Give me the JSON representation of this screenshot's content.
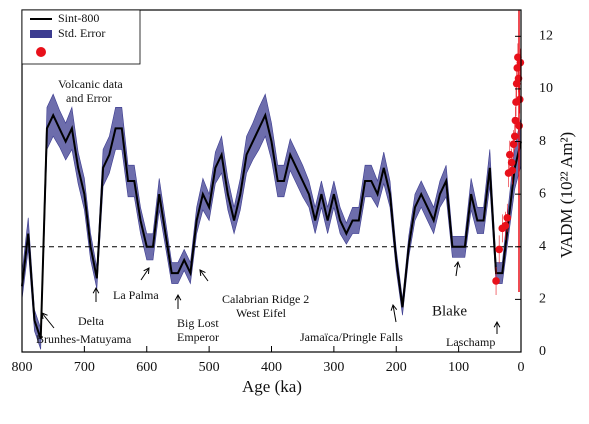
{
  "chart_data": {
    "type": "line",
    "x_label": "Age (ka)",
    "y_label": "VADM (10²² Am²)",
    "xlim": [
      800,
      0
    ],
    "xticks": [
      800,
      700,
      600,
      500,
      400,
      300,
      200,
      100,
      0
    ],
    "ylim": [
      0,
      13
    ],
    "yticks": [
      0,
      2,
      4,
      6,
      8,
      10,
      12
    ],
    "reference_line": 4,
    "x": [
      800,
      790,
      780,
      770,
      760,
      750,
      740,
      730,
      720,
      710,
      700,
      690,
      680,
      670,
      660,
      650,
      640,
      630,
      620,
      610,
      600,
      590,
      580,
      570,
      560,
      550,
      540,
      530,
      520,
      510,
      500,
      490,
      480,
      470,
      460,
      450,
      440,
      430,
      420,
      410,
      400,
      390,
      380,
      370,
      360,
      350,
      340,
      330,
      320,
      310,
      300,
      290,
      280,
      270,
      260,
      250,
      240,
      230,
      220,
      210,
      200,
      190,
      180,
      170,
      160,
      150,
      140,
      130,
      120,
      110,
      100,
      90,
      80,
      70,
      60,
      50,
      40,
      30,
      20,
      10,
      0
    ],
    "series": [
      {
        "name": "Sint-800",
        "color": "#000000",
        "values": [
          2.5,
          4.5,
          1.2,
          0.5,
          8.5,
          9,
          8.5,
          8,
          8.5,
          7,
          6,
          4,
          2.8,
          7,
          7.5,
          8.5,
          8.5,
          6.5,
          6.5,
          5,
          4,
          4,
          6,
          4.5,
          3,
          3,
          3.5,
          3,
          5,
          6,
          5.5,
          7,
          7.5,
          6,
          5,
          6,
          7.5,
          8,
          8.5,
          9,
          8,
          6.5,
          6.5,
          7.5,
          7,
          6.5,
          6,
          5,
          6,
          5,
          6,
          5,
          4.5,
          5,
          5,
          6.5,
          6.5,
          6,
          7,
          6,
          3.5,
          1.7,
          4,
          5.5,
          6,
          5.5,
          5,
          6,
          6.5,
          4,
          4,
          4,
          6,
          5,
          5,
          7,
          3,
          3,
          5,
          7,
          8
        ]
      },
      {
        "name": "Std. Error",
        "color": "#3c3c90",
        "values": [
          0.5,
          0.6,
          0.4,
          0.4,
          0.8,
          0.8,
          0.7,
          0.7,
          0.8,
          0.6,
          0.6,
          0.5,
          0.4,
          0.7,
          0.7,
          0.8,
          0.8,
          0.6,
          0.6,
          0.5,
          0.5,
          0.5,
          0.6,
          0.5,
          0.4,
          0.4,
          0.4,
          0.4,
          0.5,
          0.6,
          0.5,
          0.6,
          0.7,
          0.6,
          0.5,
          0.6,
          0.7,
          0.7,
          0.8,
          0.8,
          0.7,
          0.6,
          0.6,
          0.6,
          0.6,
          0.6,
          0.5,
          0.5,
          0.5,
          0.5,
          0.5,
          0.5,
          0.4,
          0.5,
          0.5,
          0.6,
          0.6,
          0.5,
          0.6,
          0.5,
          0.4,
          0.3,
          0.4,
          0.5,
          0.5,
          0.5,
          0.5,
          0.5,
          0.6,
          0.4,
          0.4,
          0.4,
          0.6,
          0.5,
          0.5,
          0.7,
          0.4,
          0.4,
          0.6,
          0.8,
          0.9
        ]
      },
      {
        "color": "#e8101a",
        "x": [
          40,
          35,
          30,
          25,
          22,
          20,
          18,
          15,
          14,
          12,
          10,
          9,
          8,
          7,
          6,
          5,
          4,
          3,
          2,
          1
        ],
        "values": [
          2.7,
          3.9,
          4.7,
          4.8,
          5.1,
          6.8,
          7.5,
          7.2,
          6.9,
          7.9,
          8.2,
          8.8,
          9.5,
          10.2,
          10.8,
          11.2,
          10.4,
          8.6,
          9.6,
          11.0
        ]
      }
    ],
    "annotations": [
      "Volcanic data",
      "and Error",
      "Delta",
      "Brunhes-Matuyama",
      "La Palma",
      "Big Lost",
      "Emperor",
      "Calabrian Ridge 2",
      "West Eifel",
      "Jamaïca/Pringle Falls",
      "Blake",
      "Laschamp"
    ]
  }
}
